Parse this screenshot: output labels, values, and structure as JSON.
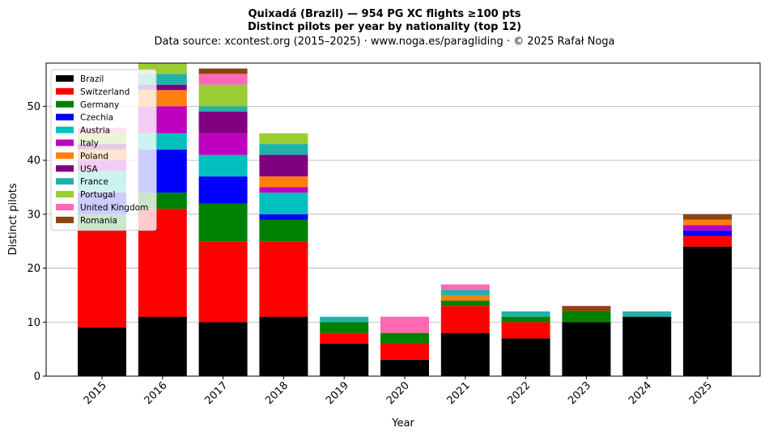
{
  "chart_data": {
    "type": "bar",
    "stacked": true,
    "title": "Quixadá (Brazil)  —  954 PG XC flights ≥100 pts",
    "subtitle": "Distinct pilots per year by nationality (top 12)",
    "source_line": "Data source: xcontest.org (2015–2025)  ·  www.noga.es/paragliding  ·  © 2025 Rafał Noga",
    "xlabel": "Year",
    "ylabel": "Distinct pilots",
    "ylim": [
      0,
      58
    ],
    "yticks": [
      "0",
      "10",
      "20",
      "30",
      "40",
      "50"
    ],
    "grid": "horizontal",
    "legend_position": "top-left",
    "categories": [
      "2015",
      "2016",
      "2017",
      "2018",
      "2019",
      "2020",
      "2021",
      "2022",
      "2023",
      "2024",
      "2025"
    ],
    "series": [
      {
        "name": "Brazil",
        "color": "#000000",
        "values": [
          9,
          11,
          10,
          11,
          6,
          3,
          8,
          7,
          10,
          11,
          24
        ]
      },
      {
        "name": "Switzerland",
        "color": "#ff0000",
        "values": [
          18,
          20,
          15,
          14,
          2,
          3,
          5,
          3,
          0,
          0,
          2
        ]
      },
      {
        "name": "Germany",
        "color": "#008000",
        "values": [
          3,
          3,
          7,
          4,
          2,
          2,
          1,
          1,
          2,
          0,
          0
        ]
      },
      {
        "name": "Czechia",
        "color": "#0000ff",
        "values": [
          4,
          8,
          5,
          1,
          0,
          0,
          0,
          0,
          0,
          0,
          1
        ]
      },
      {
        "name": "Austria",
        "color": "#00bfbf",
        "values": [
          4,
          3,
          4,
          4,
          0,
          0,
          0,
          0,
          0,
          0,
          0
        ]
      },
      {
        "name": "Italy",
        "color": "#bf00bf",
        "values": [
          2,
          5,
          4,
          1,
          0,
          0,
          0,
          0,
          0,
          0,
          1
        ]
      },
      {
        "name": "Poland",
        "color": "#ff7f0e",
        "values": [
          2,
          3,
          0,
          2,
          0,
          0,
          1,
          0,
          0,
          0,
          1
        ]
      },
      {
        "name": "USA",
        "color": "#800080",
        "values": [
          1,
          1,
          4,
          4,
          0,
          0,
          0,
          0,
          0,
          0,
          0
        ]
      },
      {
        "name": "France",
        "color": "#20b2aa",
        "values": [
          0,
          2,
          1,
          2,
          1,
          0,
          1,
          1,
          0,
          1,
          0
        ]
      },
      {
        "name": "Portugal",
        "color": "#9acd32",
        "values": [
          2,
          2,
          4,
          2,
          0,
          0,
          0,
          0,
          0,
          0,
          0
        ]
      },
      {
        "name": "United Kingdom",
        "color": "#ff69b4",
        "values": [
          1,
          0,
          2,
          0,
          0,
          3,
          1,
          0,
          0,
          0,
          0
        ]
      },
      {
        "name": "Romania",
        "color": "#8b4513",
        "values": [
          0,
          0,
          1,
          0,
          0,
          0,
          0,
          0,
          1,
          0,
          1
        ]
      }
    ]
  }
}
